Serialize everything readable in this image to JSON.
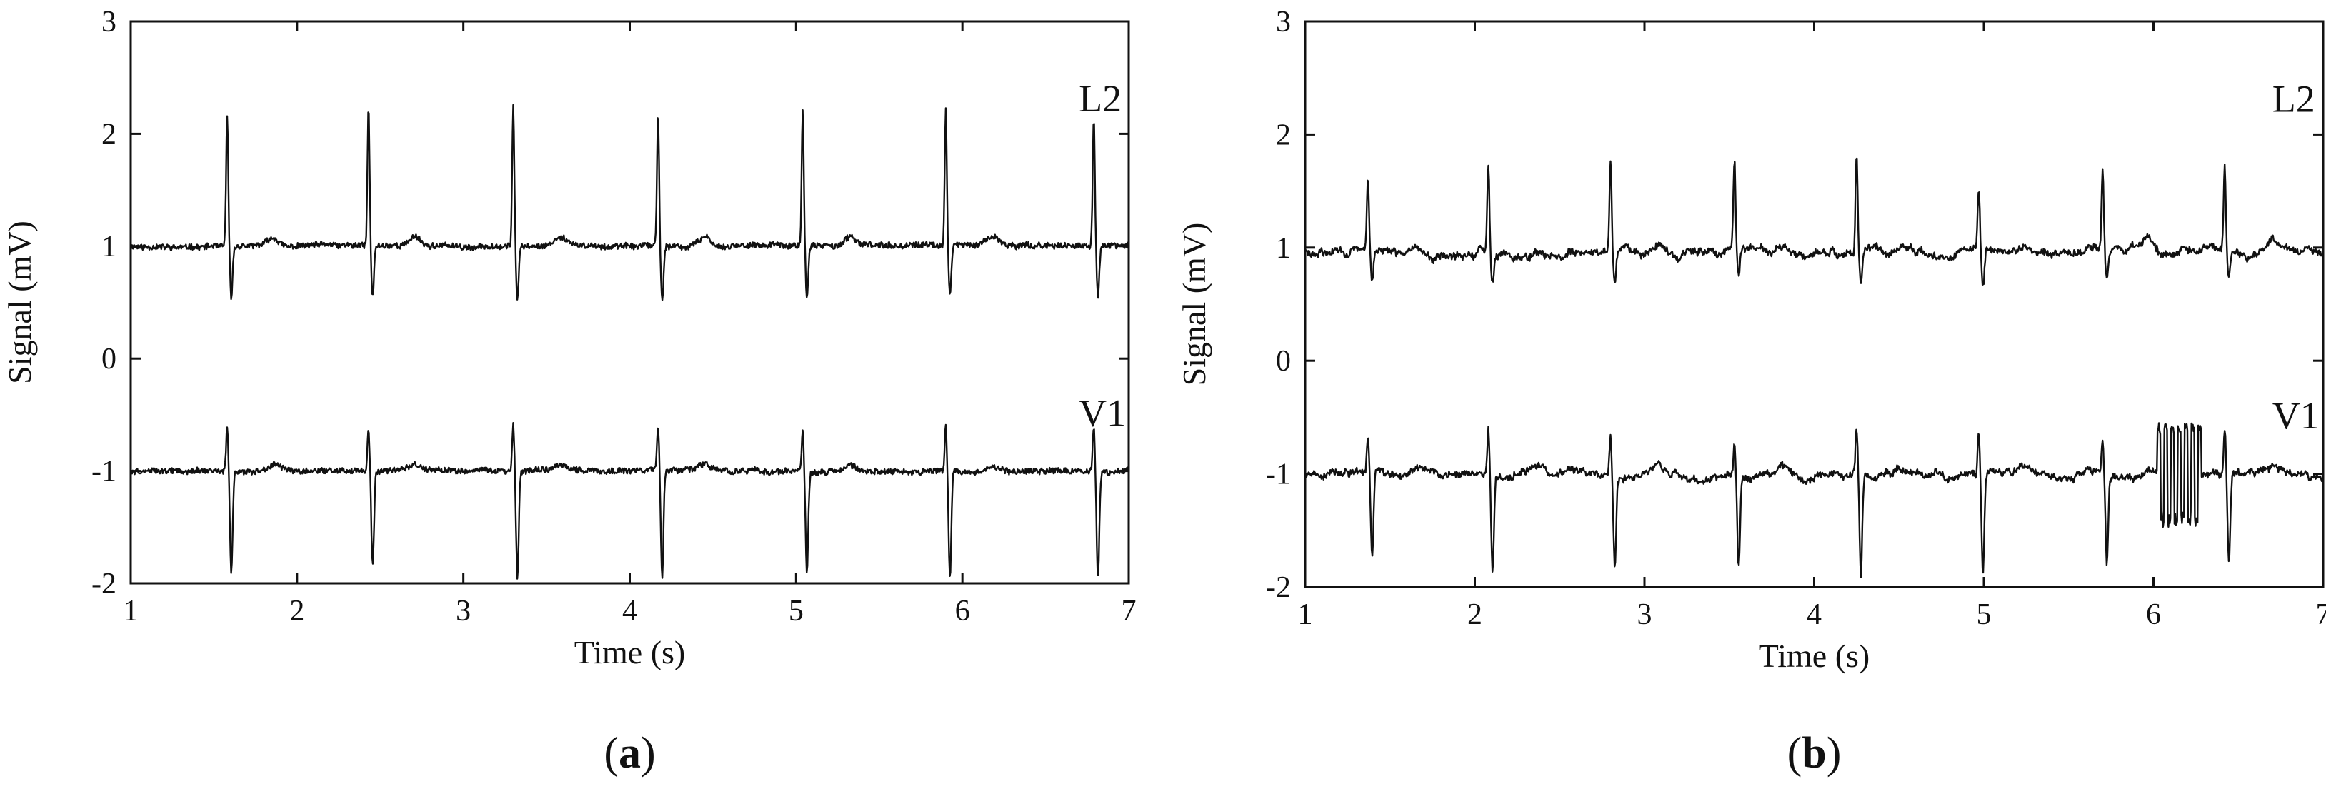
{
  "chart_data": [
    {
      "type": "line",
      "panel_label": "(a)",
      "panel_letter": "a",
      "xlabel": "Time (s)",
      "ylabel": "Signal (mV)",
      "xlim": [
        1,
        7
      ],
      "ylim": [
        -2,
        3
      ],
      "x_ticks": [
        1,
        2,
        3,
        4,
        5,
        6,
        7
      ],
      "y_ticks": [
        -2,
        -1,
        0,
        1,
        2,
        3
      ],
      "grid": false,
      "line_color": "#111111",
      "series": [
        {
          "name": "L2",
          "baseline": 1.0,
          "label_position": {
            "x": 6.7,
            "y": 2.2
          },
          "beats": [
            {
              "t": 1.58,
              "peak": 2.15,
              "trough": 0.55
            },
            {
              "t": 2.43,
              "peak": 2.25,
              "trough": 0.55
            },
            {
              "t": 3.3,
              "peak": 2.25,
              "trough": 0.52
            },
            {
              "t": 4.17,
              "peak": 2.2,
              "trough": 0.52
            },
            {
              "t": 5.04,
              "peak": 2.2,
              "trough": 0.55
            },
            {
              "t": 5.9,
              "peak": 2.2,
              "trough": 0.55
            },
            {
              "t": 6.79,
              "peak": 2.15,
              "trough": 0.55
            }
          ]
        },
        {
          "name": "V1",
          "baseline": -1.0,
          "label_position": {
            "x": 6.7,
            "y": -0.6
          },
          "beats": [
            {
              "t": 1.58,
              "peak": -0.6,
              "trough": -1.9
            },
            {
              "t": 2.43,
              "peak": -0.62,
              "trough": -1.85
            },
            {
              "t": 3.3,
              "peak": -0.58,
              "trough": -1.95
            },
            {
              "t": 4.17,
              "peak": -0.6,
              "trough": -1.95
            },
            {
              "t": 5.04,
              "peak": -0.65,
              "trough": -1.88
            },
            {
              "t": 5.9,
              "peak": -0.58,
              "trough": -1.95
            },
            {
              "t": 6.79,
              "peak": -0.6,
              "trough": -1.95
            }
          ]
        }
      ]
    },
    {
      "type": "line",
      "panel_label": "(b)",
      "panel_letter": "b",
      "xlabel": "Time (s)",
      "ylabel": "Signal (mV)",
      "xlim": [
        1,
        7
      ],
      "ylim": [
        -2,
        3
      ],
      "x_ticks": [
        1,
        2,
        3,
        4,
        5,
        6,
        7
      ],
      "y_ticks": [
        -2,
        -1,
        0,
        1,
        2,
        3
      ],
      "grid": false,
      "line_color": "#111111",
      "series": [
        {
          "name": "L2",
          "baseline": 0.95,
          "label_position": {
            "x": 6.7,
            "y": 2.2
          },
          "beats": [
            {
              "t": 1.37,
              "peak": 1.62,
              "trough": 0.68
            },
            {
              "t": 2.08,
              "peak": 1.75,
              "trough": 0.7
            },
            {
              "t": 2.8,
              "peak": 1.8,
              "trough": 0.7
            },
            {
              "t": 3.53,
              "peak": 1.72,
              "trough": 0.72
            },
            {
              "t": 4.25,
              "peak": 1.85,
              "trough": 0.65
            },
            {
              "t": 4.97,
              "peak": 1.48,
              "trough": 0.62
            },
            {
              "t": 5.7,
              "peak": 1.68,
              "trough": 0.7
            },
            {
              "t": 6.42,
              "peak": 1.72,
              "trough": 0.72
            }
          ]
        },
        {
          "name": "V1",
          "baseline": -1.0,
          "label_position": {
            "x": 6.7,
            "y": -0.6
          },
          "beats": [
            {
              "t": 1.37,
              "peak": -0.68,
              "trough": -1.75
            },
            {
              "t": 2.08,
              "peak": -0.6,
              "trough": -1.85
            },
            {
              "t": 2.8,
              "peak": -0.65,
              "trough": -1.8
            },
            {
              "t": 3.53,
              "peak": -0.68,
              "trough": -1.8
            },
            {
              "t": 4.25,
              "peak": -0.6,
              "trough": -1.9
            },
            {
              "t": 4.97,
              "peak": -0.6,
              "trough": -1.85
            },
            {
              "t": 5.7,
              "peak": -0.7,
              "trough": -1.78
            },
            {
              "t": 6.42,
              "peak": -0.62,
              "trough": -1.82
            }
          ],
          "artifact": {
            "t_start": 6.02,
            "t_end": 6.28,
            "max": -0.65,
            "min": -1.48
          }
        }
      ]
    }
  ]
}
